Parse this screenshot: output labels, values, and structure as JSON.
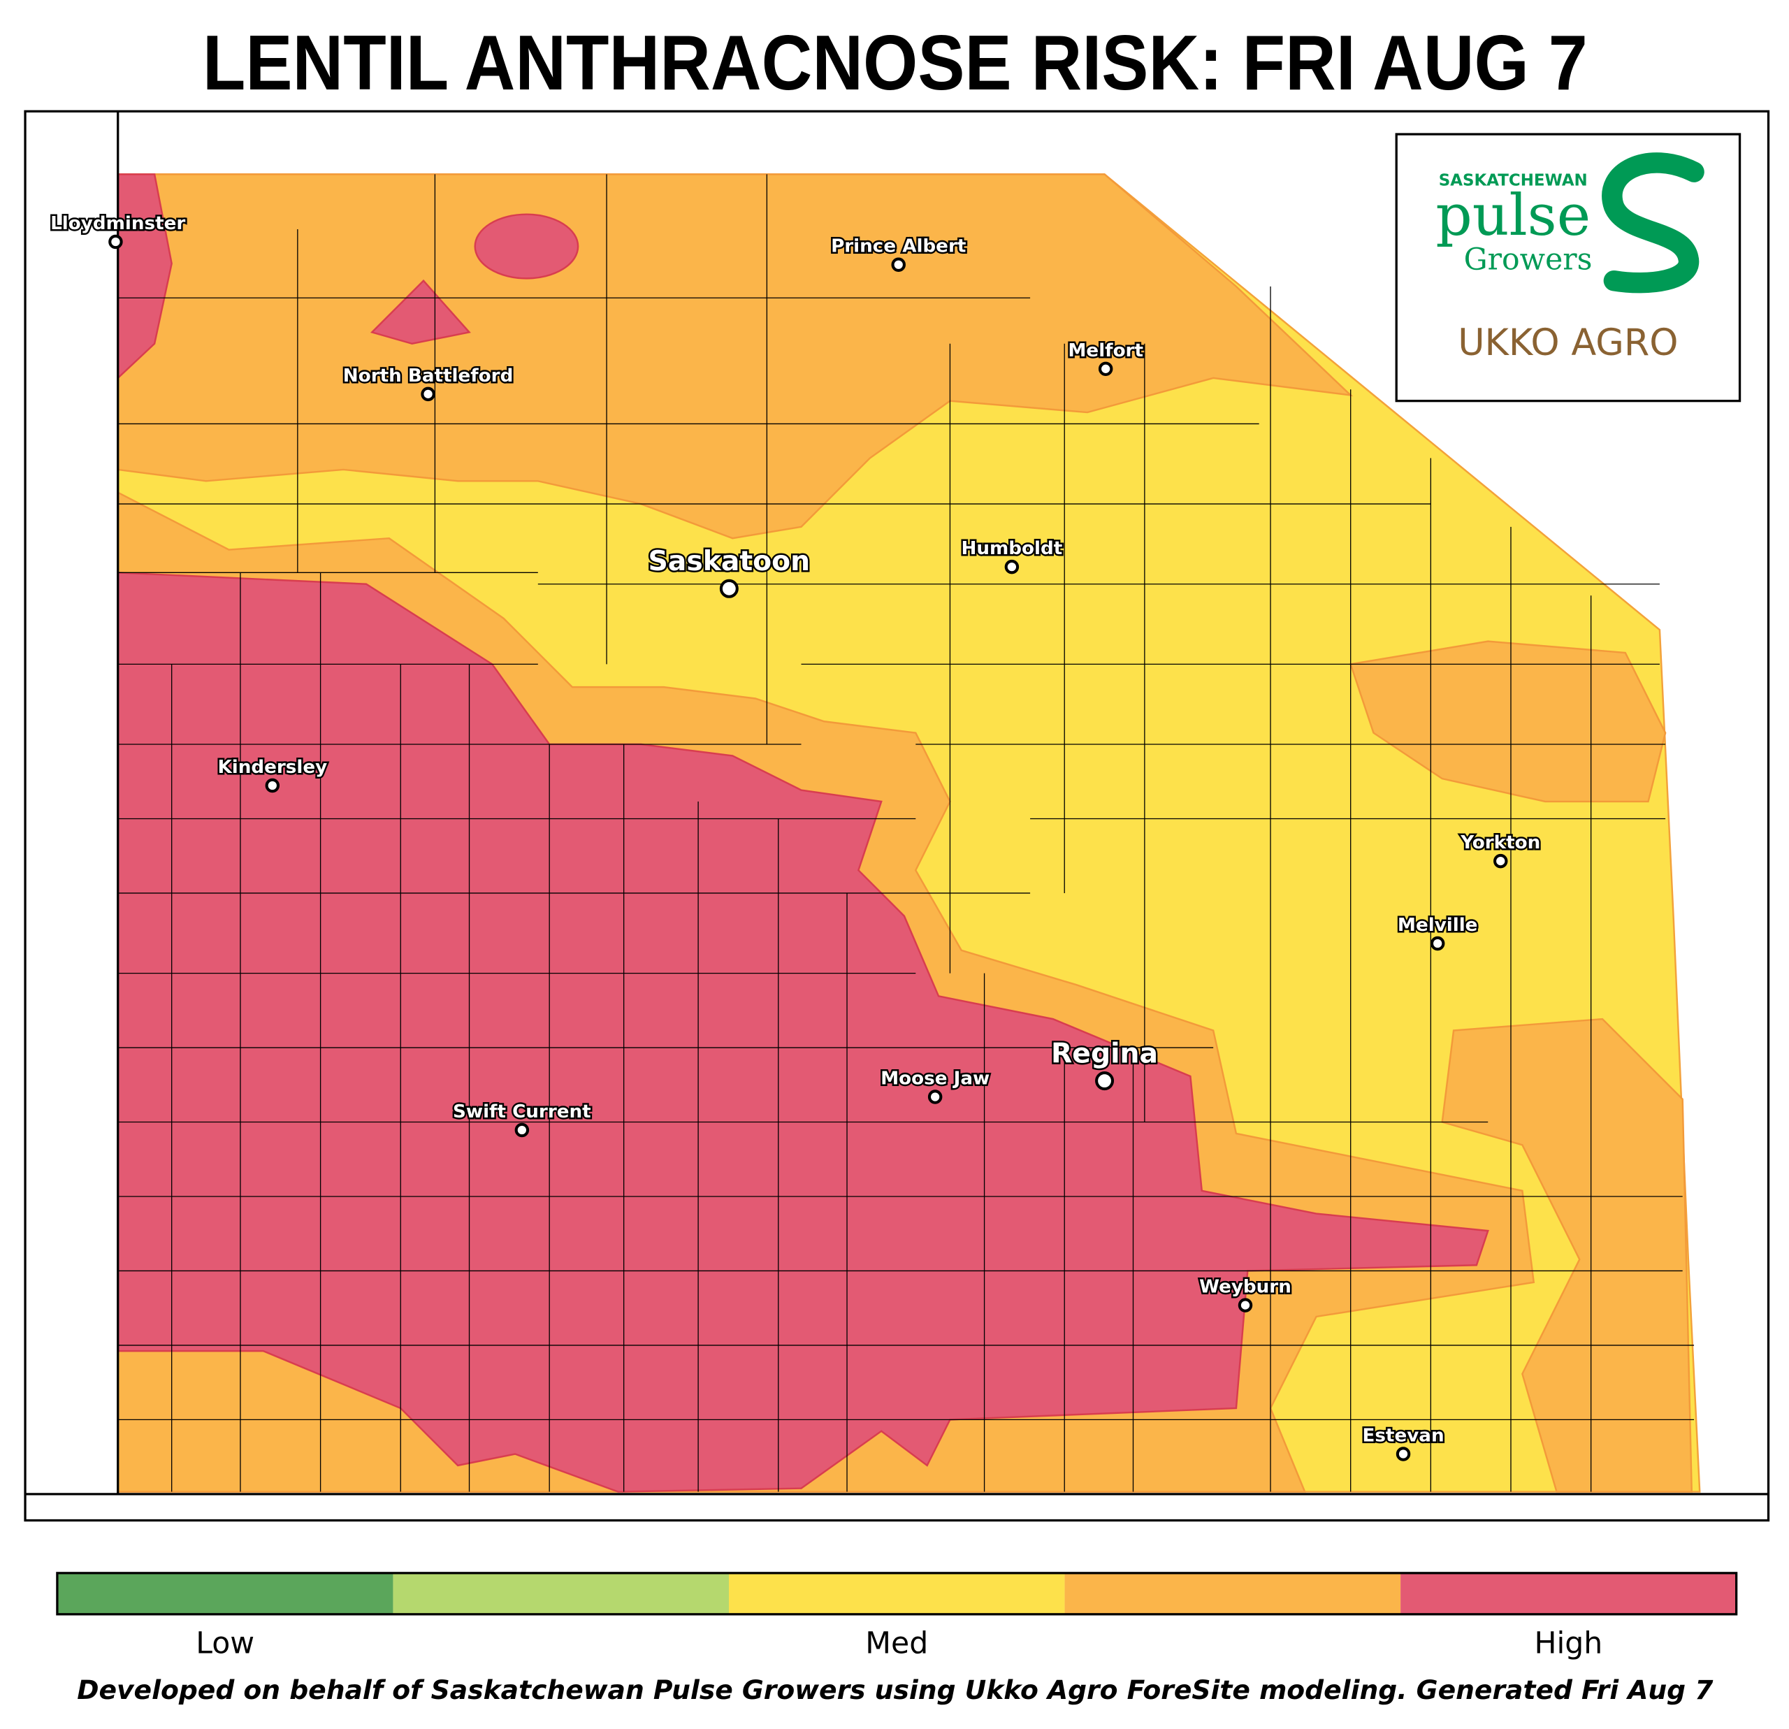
{
  "title": "LENTIL ANTHRACNOSE RISK: FRI AUG 7",
  "logo": {
    "top": "SASKATCHEWAN",
    "word": "pulse",
    "sub": "Growers",
    "partner": "UKKO AGRO"
  },
  "cities": [
    {
      "name": "Lloydminster",
      "major": false
    },
    {
      "name": "Prince Albert",
      "major": false
    },
    {
      "name": "Melfort",
      "major": false
    },
    {
      "name": "North Battleford",
      "major": false
    },
    {
      "name": "Saskatoon",
      "major": true
    },
    {
      "name": "Humboldt",
      "major": false
    },
    {
      "name": "Kindersley",
      "major": false
    },
    {
      "name": "Yorkton",
      "major": false
    },
    {
      "name": "Melville",
      "major": false
    },
    {
      "name": "Regina",
      "major": true
    },
    {
      "name": "Moose Jaw",
      "major": false
    },
    {
      "name": "Swift Current",
      "major": false
    },
    {
      "name": "Weyburn",
      "major": false
    },
    {
      "name": "Estevan",
      "major": false
    }
  ],
  "legend": {
    "colors": [
      "#5ba65b",
      "#b5d86e",
      "#fde14b",
      "#fbb54a",
      "#e35a73"
    ],
    "labels": [
      "Low",
      "Med",
      "High"
    ]
  },
  "footer": "Developed on behalf of Saskatchewan Pulse Growers using Ukko Agro ForeSite modeling. Generated Fri Aug 7"
}
